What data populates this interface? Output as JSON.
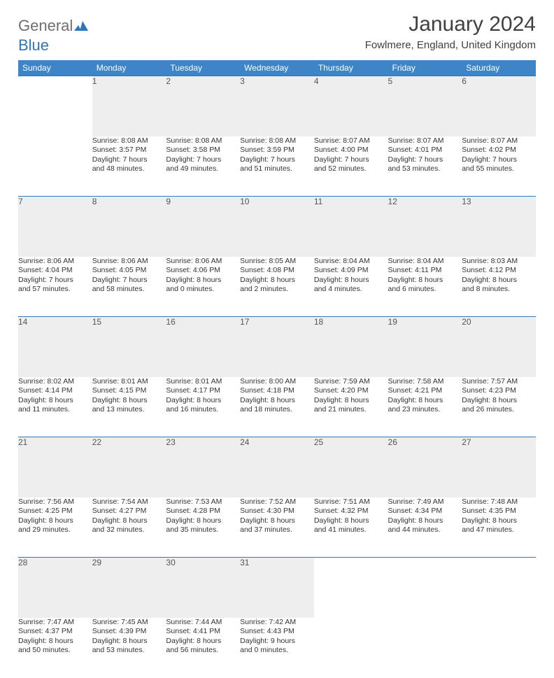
{
  "logo": {
    "word1": "General",
    "word2": "Blue"
  },
  "title": "January 2024",
  "location": "Fowlmere, England, United Kingdom",
  "colors": {
    "header_bg": "#3d85c6",
    "header_fg": "#ffffff",
    "daynum_bg": "#eeeeee",
    "rule": "#2f76bb",
    "text": "#333333",
    "logo_gray": "#6f6f6f",
    "logo_blue": "#2f76bb"
  },
  "weekdays": [
    "Sunday",
    "Monday",
    "Tuesday",
    "Wednesday",
    "Thursday",
    "Friday",
    "Saturday"
  ],
  "weeks": [
    [
      null,
      {
        "n": "1",
        "sr": "Sunrise: 8:08 AM",
        "ss": "Sunset: 3:57 PM",
        "d1": "Daylight: 7 hours",
        "d2": "and 48 minutes."
      },
      {
        "n": "2",
        "sr": "Sunrise: 8:08 AM",
        "ss": "Sunset: 3:58 PM",
        "d1": "Daylight: 7 hours",
        "d2": "and 49 minutes."
      },
      {
        "n": "3",
        "sr": "Sunrise: 8:08 AM",
        "ss": "Sunset: 3:59 PM",
        "d1": "Daylight: 7 hours",
        "d2": "and 51 minutes."
      },
      {
        "n": "4",
        "sr": "Sunrise: 8:07 AM",
        "ss": "Sunset: 4:00 PM",
        "d1": "Daylight: 7 hours",
        "d2": "and 52 minutes."
      },
      {
        "n": "5",
        "sr": "Sunrise: 8:07 AM",
        "ss": "Sunset: 4:01 PM",
        "d1": "Daylight: 7 hours",
        "d2": "and 53 minutes."
      },
      {
        "n": "6",
        "sr": "Sunrise: 8:07 AM",
        "ss": "Sunset: 4:02 PM",
        "d1": "Daylight: 7 hours",
        "d2": "and 55 minutes."
      }
    ],
    [
      {
        "n": "7",
        "sr": "Sunrise: 8:06 AM",
        "ss": "Sunset: 4:04 PM",
        "d1": "Daylight: 7 hours",
        "d2": "and 57 minutes."
      },
      {
        "n": "8",
        "sr": "Sunrise: 8:06 AM",
        "ss": "Sunset: 4:05 PM",
        "d1": "Daylight: 7 hours",
        "d2": "and 58 minutes."
      },
      {
        "n": "9",
        "sr": "Sunrise: 8:06 AM",
        "ss": "Sunset: 4:06 PM",
        "d1": "Daylight: 8 hours",
        "d2": "and 0 minutes."
      },
      {
        "n": "10",
        "sr": "Sunrise: 8:05 AM",
        "ss": "Sunset: 4:08 PM",
        "d1": "Daylight: 8 hours",
        "d2": "and 2 minutes."
      },
      {
        "n": "11",
        "sr": "Sunrise: 8:04 AM",
        "ss": "Sunset: 4:09 PM",
        "d1": "Daylight: 8 hours",
        "d2": "and 4 minutes."
      },
      {
        "n": "12",
        "sr": "Sunrise: 8:04 AM",
        "ss": "Sunset: 4:11 PM",
        "d1": "Daylight: 8 hours",
        "d2": "and 6 minutes."
      },
      {
        "n": "13",
        "sr": "Sunrise: 8:03 AM",
        "ss": "Sunset: 4:12 PM",
        "d1": "Daylight: 8 hours",
        "d2": "and 8 minutes."
      }
    ],
    [
      {
        "n": "14",
        "sr": "Sunrise: 8:02 AM",
        "ss": "Sunset: 4:14 PM",
        "d1": "Daylight: 8 hours",
        "d2": "and 11 minutes."
      },
      {
        "n": "15",
        "sr": "Sunrise: 8:01 AM",
        "ss": "Sunset: 4:15 PM",
        "d1": "Daylight: 8 hours",
        "d2": "and 13 minutes."
      },
      {
        "n": "16",
        "sr": "Sunrise: 8:01 AM",
        "ss": "Sunset: 4:17 PM",
        "d1": "Daylight: 8 hours",
        "d2": "and 16 minutes."
      },
      {
        "n": "17",
        "sr": "Sunrise: 8:00 AM",
        "ss": "Sunset: 4:18 PM",
        "d1": "Daylight: 8 hours",
        "d2": "and 18 minutes."
      },
      {
        "n": "18",
        "sr": "Sunrise: 7:59 AM",
        "ss": "Sunset: 4:20 PM",
        "d1": "Daylight: 8 hours",
        "d2": "and 21 minutes."
      },
      {
        "n": "19",
        "sr": "Sunrise: 7:58 AM",
        "ss": "Sunset: 4:21 PM",
        "d1": "Daylight: 8 hours",
        "d2": "and 23 minutes."
      },
      {
        "n": "20",
        "sr": "Sunrise: 7:57 AM",
        "ss": "Sunset: 4:23 PM",
        "d1": "Daylight: 8 hours",
        "d2": "and 26 minutes."
      }
    ],
    [
      {
        "n": "21",
        "sr": "Sunrise: 7:56 AM",
        "ss": "Sunset: 4:25 PM",
        "d1": "Daylight: 8 hours",
        "d2": "and 29 minutes."
      },
      {
        "n": "22",
        "sr": "Sunrise: 7:54 AM",
        "ss": "Sunset: 4:27 PM",
        "d1": "Daylight: 8 hours",
        "d2": "and 32 minutes."
      },
      {
        "n": "23",
        "sr": "Sunrise: 7:53 AM",
        "ss": "Sunset: 4:28 PM",
        "d1": "Daylight: 8 hours",
        "d2": "and 35 minutes."
      },
      {
        "n": "24",
        "sr": "Sunrise: 7:52 AM",
        "ss": "Sunset: 4:30 PM",
        "d1": "Daylight: 8 hours",
        "d2": "and 37 minutes."
      },
      {
        "n": "25",
        "sr": "Sunrise: 7:51 AM",
        "ss": "Sunset: 4:32 PM",
        "d1": "Daylight: 8 hours",
        "d2": "and 41 minutes."
      },
      {
        "n": "26",
        "sr": "Sunrise: 7:49 AM",
        "ss": "Sunset: 4:34 PM",
        "d1": "Daylight: 8 hours",
        "d2": "and 44 minutes."
      },
      {
        "n": "27",
        "sr": "Sunrise: 7:48 AM",
        "ss": "Sunset: 4:35 PM",
        "d1": "Daylight: 8 hours",
        "d2": "and 47 minutes."
      }
    ],
    [
      {
        "n": "28",
        "sr": "Sunrise: 7:47 AM",
        "ss": "Sunset: 4:37 PM",
        "d1": "Daylight: 8 hours",
        "d2": "and 50 minutes."
      },
      {
        "n": "29",
        "sr": "Sunrise: 7:45 AM",
        "ss": "Sunset: 4:39 PM",
        "d1": "Daylight: 8 hours",
        "d2": "and 53 minutes."
      },
      {
        "n": "30",
        "sr": "Sunrise: 7:44 AM",
        "ss": "Sunset: 4:41 PM",
        "d1": "Daylight: 8 hours",
        "d2": "and 56 minutes."
      },
      {
        "n": "31",
        "sr": "Sunrise: 7:42 AM",
        "ss": "Sunset: 4:43 PM",
        "d1": "Daylight: 9 hours",
        "d2": "and 0 minutes."
      },
      null,
      null,
      null
    ]
  ]
}
